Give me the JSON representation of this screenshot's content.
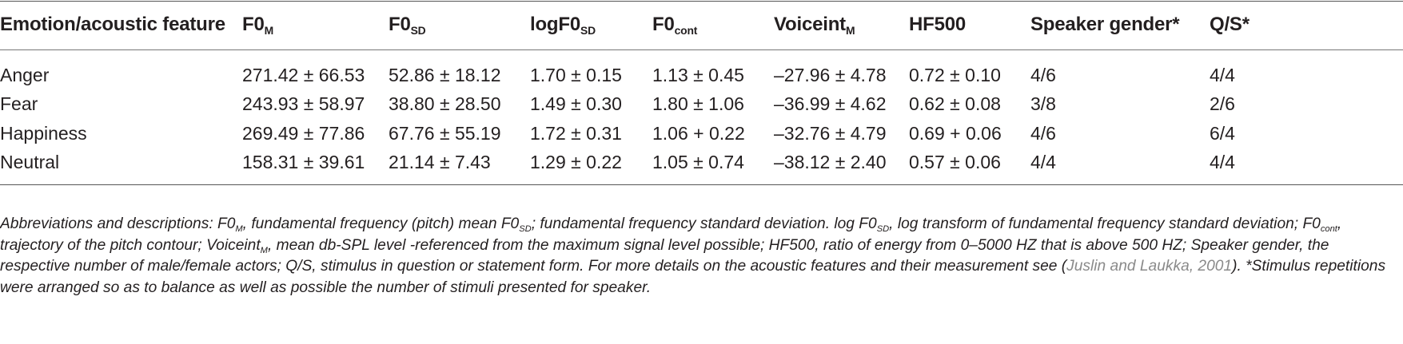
{
  "table": {
    "headers": [
      {
        "main": "Emotion/acoustic feature",
        "sub": ""
      },
      {
        "main": "F0",
        "sub": "M"
      },
      {
        "main": "F0",
        "sub": "SD"
      },
      {
        "main": "logF0",
        "sub": "SD"
      },
      {
        "main": "F0",
        "sub": "cont"
      },
      {
        "main": "Voiceint",
        "sub": "M"
      },
      {
        "main": "HF500",
        "sub": ""
      },
      {
        "main": "Speaker gender*",
        "sub": ""
      },
      {
        "main": "Q/S*",
        "sub": ""
      }
    ],
    "rows": [
      [
        "Anger",
        "271.42 ± 66.53",
        "52.86 ± 18.12",
        "1.70 ± 0.15",
        "1.13 ± 0.45",
        "–27.96 ± 4.78",
        "0.72 ± 0.10",
        "4/6",
        "4/4"
      ],
      [
        "Fear",
        "243.93 ± 58.97",
        "38.80 ± 28.50",
        "1.49 ± 0.30",
        "1.80 ± 1.06",
        "–36.99 ± 4.62",
        "0.62 ± 0.08",
        "3/8",
        "2/6"
      ],
      [
        "Happiness",
        "269.49 ± 77.86",
        "67.76 ± 55.19",
        "1.72 ± 0.31",
        "1.06 + 0.22",
        "–32.76 ± 4.79",
        "0.69 + 0.06",
        "4/6",
        "6/4"
      ],
      [
        "Neutral",
        "158.31 ± 39.61",
        "21.14 ± 7.43",
        "1.29 ± 0.22",
        "1.05 ± 0.74",
        "–38.12 ± 2.40",
        "0.57 ± 0.06",
        "4/4",
        "4/4"
      ]
    ]
  },
  "footnote": {
    "segments": [
      {
        "t": "Abbreviations and descriptions: F0"
      },
      {
        "t": "M",
        "sub": true
      },
      {
        "t": ", fundamental frequency (pitch) mean F0"
      },
      {
        "t": "SD",
        "sub": true
      },
      {
        "t": "; fundamental frequency standard deviation. log F0"
      },
      {
        "t": "SD",
        "sub": true
      },
      {
        "t": ", log transform of fundamental frequency standard deviation; F0"
      },
      {
        "t": "cont",
        "sub": true
      },
      {
        "t": ", trajectory of the pitch contour; Voiceint"
      },
      {
        "t": "M",
        "sub": true
      },
      {
        "t": ", mean db-SPL level -referenced from the maximum signal level possible; HF500, ratio of energy from 0–5000 HZ that is above 500 HZ; Speaker gender, the respective number of male/female actors; Q/S, stimulus in question or statement form. For more details on the acoustic features and their measurement see ("
      },
      {
        "t": "Juslin and Laukka, 2001",
        "ref": true
      },
      {
        "t": "). *Stimulus repetitions were arranged so as to balance as well as possible the number of stimuli presented for speaker."
      }
    ]
  }
}
